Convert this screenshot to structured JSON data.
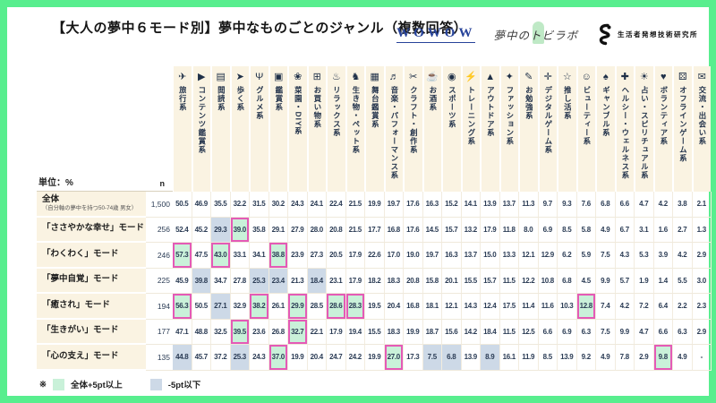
{
  "title": "【大人の夢中６モード別】夢中なものごとのジャンル（複数回答）",
  "logos": {
    "wowow": "WOWOW",
    "muchu": "夢中のトビラボ",
    "seikatsusha": "生活者発想技術研究所"
  },
  "unit_label": "単位：%",
  "n_label": "n",
  "legend": {
    "note": "※",
    "green_label": "全体+5pt以上",
    "blue_label": "-5pt以下"
  },
  "colors": {
    "frame_green": "#58ee8e",
    "header_cream": "#faf3e2",
    "text_navy": "#2b3c55",
    "highlight_green": "#c9f1d9",
    "highlight_green_border": "#e45ab6",
    "highlight_blue": "#cdd9e7",
    "wowow_navy": "#27439a"
  },
  "chart_data": {
    "type": "table",
    "columns": [
      {
        "label": "旅行系",
        "icon": "✈",
        "icon_name": "airplane-icon"
      },
      {
        "label": "コンテンツ鑑賞系",
        "icon": "▶",
        "icon_name": "film-icon"
      },
      {
        "label": "閲読系",
        "icon": "▤",
        "icon_name": "book-icon"
      },
      {
        "label": "歩く系",
        "icon": "➤",
        "icon_name": "shoe-icon"
      },
      {
        "label": "グルメ系",
        "icon": "Ψ",
        "icon_name": "fork-knife-icon"
      },
      {
        "label": "鑑賞系",
        "icon": "▣",
        "icon_name": "picture-icon"
      },
      {
        "label": "菜園・DIY系",
        "icon": "❀",
        "icon_name": "watering-can-icon"
      },
      {
        "label": "お買い物系",
        "icon": "⊞",
        "icon_name": "shopping-cart-icon"
      },
      {
        "label": "リラックス系",
        "icon": "♨",
        "icon_name": "hot-spring-icon"
      },
      {
        "label": "生き物・ペット系",
        "icon": "♞",
        "icon_name": "pet-icon"
      },
      {
        "label": "舞台鑑賞系",
        "icon": "▦",
        "icon_name": "stage-icon"
      },
      {
        "label": "音楽・パフォーマンス系",
        "icon": "♬",
        "icon_name": "music-note-icon"
      },
      {
        "label": "クラフト・創作系",
        "icon": "✂",
        "icon_name": "scissors-icon"
      },
      {
        "label": "お酒系",
        "icon": "☕",
        "icon_name": "beer-mug-icon"
      },
      {
        "label": "スポーツ系",
        "icon": "◉",
        "icon_name": "sports-icon"
      },
      {
        "label": "トレーニング系",
        "icon": "⚡",
        "icon_name": "running-icon"
      },
      {
        "label": "アウトドア系",
        "icon": "▲",
        "icon_name": "mountain-icon"
      },
      {
        "label": "ファッション系",
        "icon": "✦",
        "icon_name": "shirt-icon"
      },
      {
        "label": "お勉強系",
        "icon": "✎",
        "icon_name": "study-icon"
      },
      {
        "label": "デジタルゲーム系",
        "icon": "✛",
        "icon_name": "game-controller-icon"
      },
      {
        "label": "推し活系",
        "icon": "☆",
        "icon_name": "penlight-icon"
      },
      {
        "label": "ビューティー系",
        "icon": "☺",
        "icon_name": "beauty-face-icon"
      },
      {
        "label": "ギャンブル系",
        "icon": "♠",
        "icon_name": "casino-chips-icon"
      },
      {
        "label": "ヘルシー・ウェルネス系",
        "icon": "✚",
        "icon_name": "wellness-icon"
      },
      {
        "label": "占い・スピリチュアル系",
        "icon": "☀",
        "icon_name": "sun-icon"
      },
      {
        "label": "ボランティア系",
        "icon": "♥",
        "icon_name": "heart-hand-icon"
      },
      {
        "label": "オフラインゲーム系",
        "icon": "⚄",
        "icon_name": "board-game-icon"
      },
      {
        "label": "交流・出会い系",
        "icon": "✉",
        "icon_name": "chat-bubbles-icon"
      }
    ],
    "rows": [
      {
        "label": "全体",
        "sublabel": "（自分軸の夢中を持つ50-74歳 男女）",
        "n": "1,500",
        "values": [
          "50.5",
          "46.9",
          "35.5",
          "32.2",
          "31.5",
          "30.2",
          "24.3",
          "24.1",
          "22.4",
          "21.5",
          "19.9",
          "19.7",
          "17.6",
          "16.3",
          "15.2",
          "14.1",
          "13.9",
          "13.7",
          "11.3",
          "9.7",
          "9.3",
          "7.6",
          "6.8",
          "6.6",
          "4.7",
          "4.2",
          "3.8",
          "2.1"
        ],
        "green": [],
        "blue": []
      },
      {
        "label": "「ささやかな幸せ」モード",
        "sublabel": "",
        "n": "256",
        "values": [
          "52.4",
          "45.2",
          "29.3",
          "39.0",
          "35.8",
          "29.1",
          "27.9",
          "28.0",
          "20.8",
          "21.5",
          "17.7",
          "16.8",
          "17.6",
          "14.5",
          "15.7",
          "13.2",
          "17.9",
          "11.8",
          "8.0",
          "6.9",
          "8.5",
          "5.8",
          "4.9",
          "6.7",
          "3.1",
          "1.6",
          "2.7",
          "1.3"
        ],
        "green": [
          4
        ],
        "blue": [
          3
        ]
      },
      {
        "label": "「わくわく」モード",
        "sublabel": "",
        "n": "246",
        "values": [
          "57.3",
          "47.5",
          "43.0",
          "33.1",
          "34.1",
          "38.8",
          "23.9",
          "27.3",
          "20.5",
          "17.9",
          "22.6",
          "17.0",
          "19.0",
          "19.7",
          "16.3",
          "13.7",
          "15.0",
          "13.3",
          "12.1",
          "12.9",
          "6.2",
          "5.9",
          "7.5",
          "4.3",
          "5.3",
          "3.9",
          "4.2",
          "2.9"
        ],
        "green": [
          1,
          3,
          6
        ],
        "blue": []
      },
      {
        "label": "「夢中自覚」モード",
        "sublabel": "",
        "n": "225",
        "values": [
          "45.9",
          "39.8",
          "34.7",
          "27.8",
          "25.3",
          "23.4",
          "21.3",
          "18.4",
          "23.1",
          "17.9",
          "18.2",
          "18.3",
          "20.8",
          "15.8",
          "20.1",
          "15.5",
          "15.7",
          "11.5",
          "12.2",
          "10.8",
          "6.8",
          "4.5",
          "9.9",
          "5.7",
          "1.9",
          "1.4",
          "5.5",
          "3.0"
        ],
        "green": [],
        "blue": [
          2,
          5,
          6,
          8
        ]
      },
      {
        "label": "「癒され」モード",
        "sublabel": "",
        "n": "194",
        "values": [
          "56.3",
          "50.5",
          "27.1",
          "32.9",
          "38.2",
          "26.1",
          "29.9",
          "28.5",
          "28.6",
          "28.3",
          "19.5",
          "20.4",
          "16.8",
          "18.1",
          "12.1",
          "14.3",
          "12.4",
          "17.5",
          "11.4",
          "11.6",
          "10.3",
          "12.8",
          "7.4",
          "4.2",
          "7.2",
          "6.4",
          "2.2",
          "2.3"
        ],
        "green": [
          1,
          5,
          7,
          9,
          10,
          22
        ],
        "blue": [
          3
        ]
      },
      {
        "label": "「生きがい」モード",
        "sublabel": "",
        "n": "177",
        "values": [
          "47.1",
          "48.8",
          "32.5",
          "39.5",
          "23.6",
          "26.8",
          "32.7",
          "22.1",
          "17.9",
          "19.4",
          "15.5",
          "18.3",
          "19.9",
          "18.7",
          "15.6",
          "14.2",
          "18.4",
          "11.5",
          "12.5",
          "6.6",
          "6.9",
          "6.3",
          "7.5",
          "9.9",
          "4.7",
          "6.6",
          "6.3",
          "2.9"
        ],
        "green": [
          4,
          7
        ],
        "blue": []
      },
      {
        "label": "「心の支え」モード",
        "sublabel": "",
        "n": "135",
        "values": [
          "44.8",
          "45.7",
          "37.2",
          "25.3",
          "24.3",
          "37.0",
          "19.9",
          "20.4",
          "24.7",
          "24.2",
          "19.9",
          "27.0",
          "17.3",
          "7.5",
          "6.8",
          "13.9",
          "8.9",
          "16.1",
          "11.9",
          "8.5",
          "13.9",
          "9.2",
          "4.9",
          "7.8",
          "2.9",
          "9.8",
          "4.9",
          "-"
        ],
        "green": [
          6,
          12,
          26
        ],
        "blue": [
          1,
          4,
          14,
          15,
          17
        ]
      }
    ]
  }
}
